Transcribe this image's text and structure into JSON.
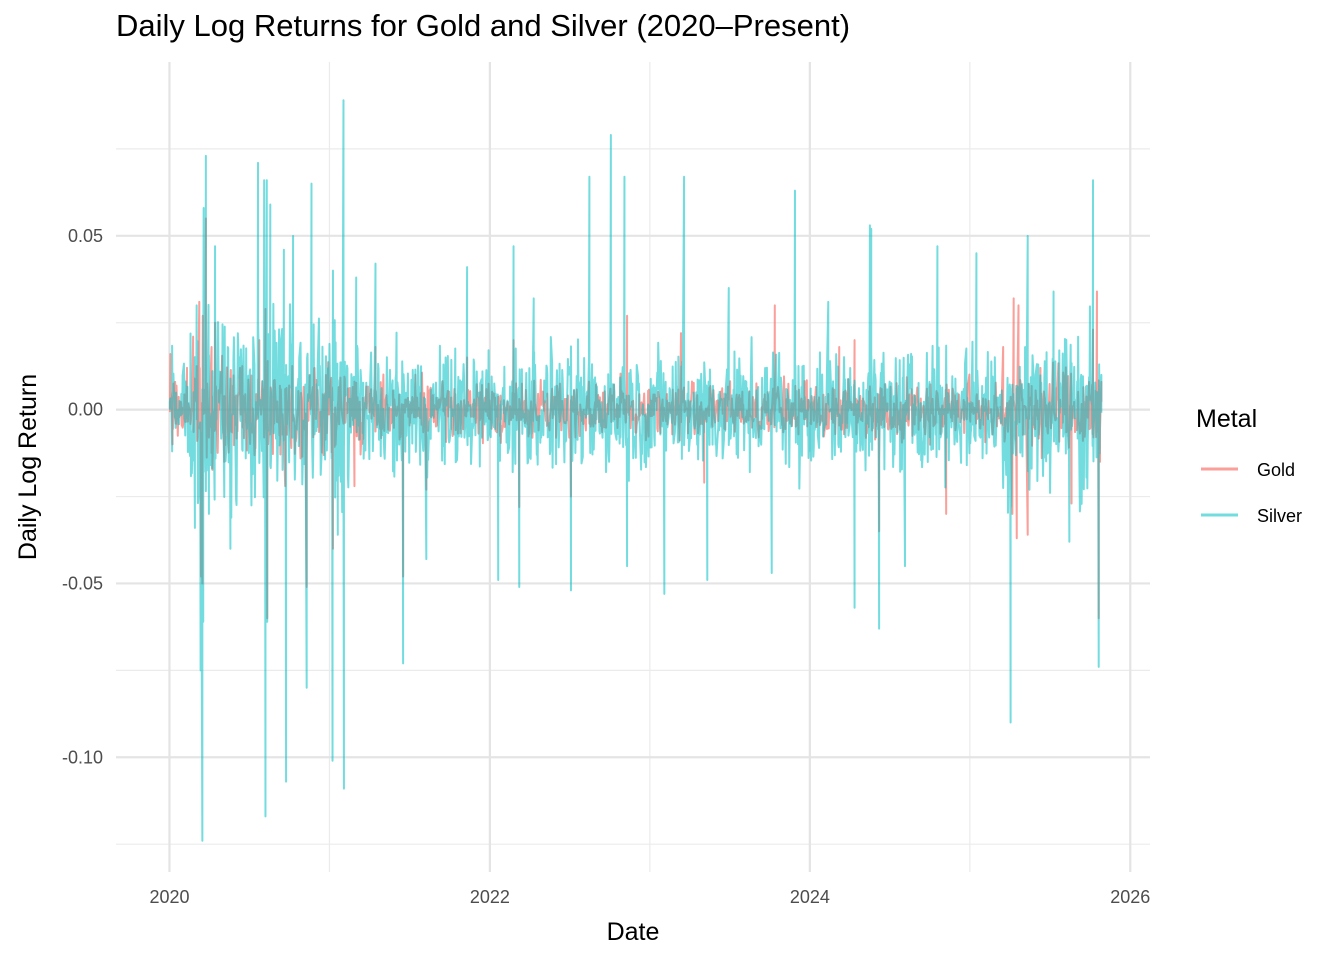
{
  "chart_data": {
    "type": "line",
    "title": "Daily Log Returns for Gold and Silver (2020–Present)",
    "xlabel": "Date",
    "ylabel": "Daily Log Return",
    "xlim": [
      "2019-09-01",
      "2026-02-15"
    ],
    "ylim": [
      -0.133,
      0.1
    ],
    "x_ticks": [
      "2020-01-01",
      "2022-01-01",
      "2024-01-01",
      "2026-01-01"
    ],
    "x_tick_labels": [
      "2020",
      "2022",
      "2024",
      "2026"
    ],
    "y_ticks": [
      -0.1,
      -0.05,
      0.0,
      0.05
    ],
    "y_tick_labels": [
      "-0.10",
      "-0.05",
      "0.00",
      "0.05"
    ],
    "grid": true,
    "legend": {
      "title": "Metal",
      "position": "right"
    },
    "series": [
      {
        "name": "Gold",
        "color": "#F8766D",
        "opacity": 0.7,
        "points": [
          [
            "2020-01-02",
            0.0
          ],
          [
            "2020-01-03",
            0.016
          ],
          [
            "2020-01-08",
            -0.01
          ],
          [
            "2020-01-14",
            0.008
          ],
          [
            "2020-02-10",
            0.012
          ],
          [
            "2020-02-24",
            0.021
          ],
          [
            "2020-03-09",
            0.031
          ],
          [
            "2020-03-13",
            -0.048
          ],
          [
            "2020-03-16",
            -0.05
          ],
          [
            "2020-03-17",
            0.027
          ],
          [
            "2020-03-24",
            0.055
          ],
          [
            "2020-04-06",
            0.018
          ],
          [
            "2020-04-14",
            0.025
          ],
          [
            "2020-05-05",
            -0.015
          ],
          [
            "2020-06-10",
            0.012
          ],
          [
            "2020-07-24",
            0.02
          ],
          [
            "2020-08-07",
            0.029
          ],
          [
            "2020-08-11",
            -0.06
          ],
          [
            "2020-08-12",
            0.014
          ],
          [
            "2020-09-21",
            -0.022
          ],
          [
            "2020-11-09",
            -0.051
          ],
          [
            "2020-11-16",
            0.01
          ],
          [
            "2021-01-08",
            -0.04
          ],
          [
            "2021-02-26",
            -0.022
          ],
          [
            "2021-04-15",
            0.018
          ],
          [
            "2021-06-17",
            -0.048
          ],
          [
            "2021-08-09",
            -0.023
          ],
          [
            "2021-11-10",
            0.015
          ],
          [
            "2022-02-24",
            0.02
          ],
          [
            "2022-03-09",
            -0.028
          ],
          [
            "2022-07-05",
            -0.025
          ],
          [
            "2022-11-10",
            0.027
          ],
          [
            "2023-03-13",
            0.022
          ],
          [
            "2023-05-05",
            -0.021
          ],
          [
            "2023-10-13",
            0.03
          ],
          [
            "2024-03-08",
            0.018
          ],
          [
            "2024-04-12",
            0.02
          ],
          [
            "2024-06-07",
            -0.035
          ],
          [
            "2024-11-07",
            -0.03
          ],
          [
            "2025-03-17",
            0.018
          ],
          [
            "2025-04-07",
            -0.03
          ],
          [
            "2025-04-10",
            0.032
          ],
          [
            "2025-04-17",
            -0.037
          ],
          [
            "2025-04-21",
            0.03
          ],
          [
            "2025-05-12",
            -0.036
          ],
          [
            "2025-06-10",
            0.012
          ],
          [
            "2025-08-20",
            -0.027
          ],
          [
            "2025-10-08",
            0.023
          ],
          [
            "2025-10-17",
            0.034
          ],
          [
            "2025-10-21",
            -0.06
          ],
          [
            "2025-10-24",
            -0.015
          ],
          [
            "2025-10-27",
            0.008
          ]
        ]
      },
      {
        "name": "Silver",
        "color": "#00BFC4",
        "opacity": 0.55,
        "points": [
          [
            "2020-01-02",
            0.0
          ],
          [
            "2020-01-07",
            -0.012
          ],
          [
            "2020-02-28",
            -0.034
          ],
          [
            "2020-03-03",
            0.03
          ],
          [
            "2020-03-12",
            -0.075
          ],
          [
            "2020-03-16",
            -0.124
          ],
          [
            "2020-03-18",
            -0.061
          ],
          [
            "2020-03-19",
            0.058
          ],
          [
            "2020-03-24",
            0.073
          ],
          [
            "2020-03-31",
            -0.03
          ],
          [
            "2020-04-14",
            0.047
          ],
          [
            "2020-05-19",
            -0.04
          ],
          [
            "2020-07-21",
            0.071
          ],
          [
            "2020-08-04",
            0.066
          ],
          [
            "2020-08-07",
            -0.117
          ],
          [
            "2020-08-10",
            0.066
          ],
          [
            "2020-08-11",
            -0.061
          ],
          [
            "2020-08-18",
            0.059
          ],
          [
            "2020-09-18",
            0.046
          ],
          [
            "2020-09-23",
            -0.107
          ],
          [
            "2020-10-09",
            0.05
          ],
          [
            "2020-11-09",
            -0.08
          ],
          [
            "2020-11-20",
            0.065
          ],
          [
            "2021-01-07",
            -0.101
          ],
          [
            "2021-01-08",
            0.04
          ],
          [
            "2021-01-19",
            -0.036
          ],
          [
            "2021-02-01",
            0.089
          ],
          [
            "2021-02-02",
            -0.109
          ],
          [
            "2021-03-02",
            0.038
          ],
          [
            "2021-04-15",
            0.042
          ],
          [
            "2021-06-17",
            -0.073
          ],
          [
            "2021-08-09",
            -0.043
          ],
          [
            "2021-11-10",
            0.041
          ],
          [
            "2022-01-20",
            -0.049
          ],
          [
            "2022-02-24",
            0.047
          ],
          [
            "2022-03-09",
            -0.051
          ],
          [
            "2022-04-11",
            0.032
          ],
          [
            "2022-07-05",
            -0.052
          ],
          [
            "2022-08-16",
            0.067
          ],
          [
            "2022-10-04",
            0.079
          ],
          [
            "2022-11-04",
            0.067
          ],
          [
            "2022-11-10",
            -0.045
          ],
          [
            "2023-02-03",
            -0.053
          ],
          [
            "2023-03-20",
            0.067
          ],
          [
            "2023-05-12",
            -0.049
          ],
          [
            "2023-06-30",
            0.035
          ],
          [
            "2023-10-06",
            -0.047
          ],
          [
            "2023-11-28",
            0.063
          ],
          [
            "2024-02-12",
            0.031
          ],
          [
            "2024-04-12",
            -0.057
          ],
          [
            "2024-05-17",
            0.053
          ],
          [
            "2024-05-20",
            0.052
          ],
          [
            "2024-06-07",
            -0.063
          ],
          [
            "2024-08-05",
            -0.045
          ],
          [
            "2024-10-18",
            0.047
          ],
          [
            "2025-01-15",
            0.045
          ],
          [
            "2025-04-03",
            -0.09
          ],
          [
            "2025-05-12",
            0.05
          ],
          [
            "2025-07-10",
            0.034
          ],
          [
            "2025-08-15",
            -0.038
          ],
          [
            "2025-10-08",
            0.066
          ],
          [
            "2025-10-21",
            -0.074
          ],
          [
            "2025-10-27",
            0.01
          ]
        ]
      }
    ]
  }
}
